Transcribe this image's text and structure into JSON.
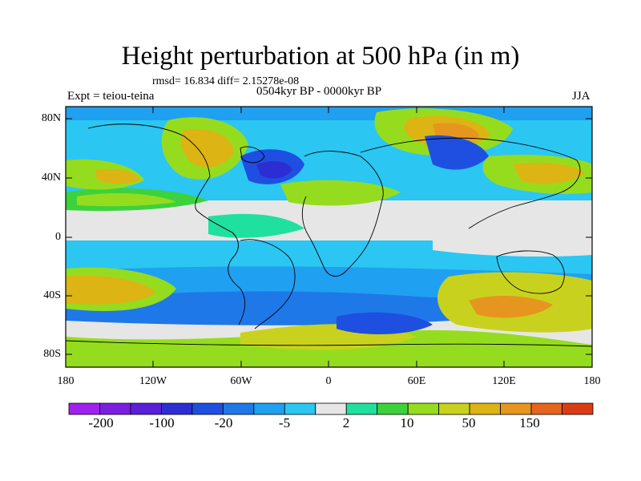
{
  "title": "Height perturbation at 500 hPa (in m)",
  "stats": "rmsd= 16.834 diff= 2.15278e-08",
  "period": "0504kyr BP - 0000kyr BP",
  "experiment": "Expt = teiou-teina",
  "season": "JJA",
  "lat_ticks": [
    "80N",
    "40N",
    "0",
    "40S",
    "80S"
  ],
  "lon_ticks": [
    "180",
    "120W",
    "60W",
    "0",
    "60E",
    "120E",
    "180"
  ],
  "colorbar": {
    "colors": [
      "#a020f0",
      "#7b1ee0",
      "#5a1fd8",
      "#2c2ed4",
      "#1f4fe0",
      "#1f78e8",
      "#1fa0f0",
      "#2bc6f2",
      "#e6e6e6",
      "#20e0a0",
      "#3cd23c",
      "#96dc1e",
      "#c8d21e",
      "#dcb414",
      "#e6961e",
      "#e6641e",
      "#dc3c14"
    ],
    "labels": [
      "-200",
      "-100",
      "-20",
      "-5",
      "2",
      "10",
      "50",
      "150"
    ]
  }
}
